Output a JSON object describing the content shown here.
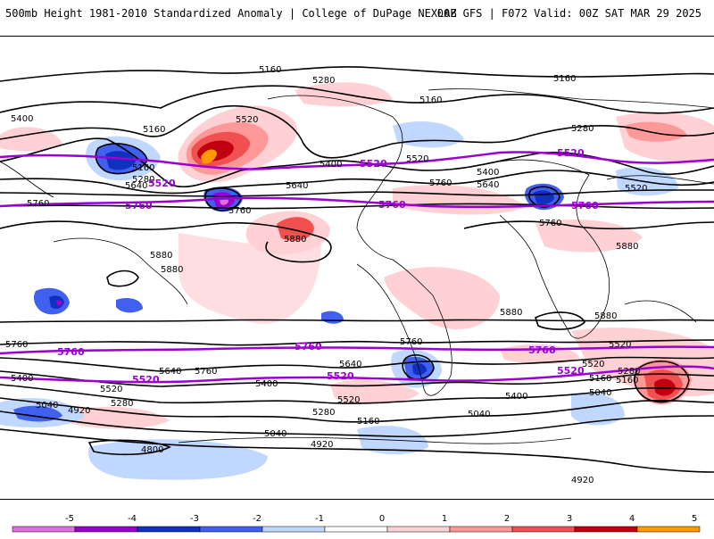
{
  "header": {
    "title": "500mb Height 1981-2010 Standardized Anomaly | College of DuPage NEXLAB",
    "run_info": "00Z GFS | F072 Valid: 00Z SAT MAR 29 2025"
  },
  "colorbar": {
    "ticks": [
      "-5",
      "-4",
      "-3",
      "-2",
      "-1",
      "0",
      "1",
      "2",
      "3",
      "4",
      "5"
    ],
    "colors": [
      "#e070e0",
      "#9b00d0",
      "#1030c0",
      "#4060f0",
      "#c0d8ff",
      "#ffffff",
      "#ffd0d4",
      "#ff9898",
      "#f05050",
      "#c00010",
      "#ff9a00"
    ]
  },
  "contour_labels": [
    {
      "id": "c1",
      "text": "5160"
    },
    {
      "id": "c2",
      "text": "5280"
    },
    {
      "id": "c3",
      "text": "5160"
    },
    {
      "id": "c4",
      "text": "5160"
    },
    {
      "id": "c5",
      "text": "5400"
    },
    {
      "id": "c6",
      "text": "5160"
    },
    {
      "id": "c7",
      "text": "5520"
    },
    {
      "id": "c8",
      "text": "5160"
    },
    {
      "id": "c9",
      "text": "5280"
    },
    {
      "id": "c10",
      "text": "5640"
    },
    {
      "id": "c11",
      "text": "5760"
    },
    {
      "id": "c12",
      "text": "5760"
    },
    {
      "id": "c13",
      "text": "5640"
    },
    {
      "id": "c14",
      "text": "5400"
    },
    {
      "id": "c15",
      "text": "5520"
    },
    {
      "id": "c16",
      "text": "5400"
    },
    {
      "id": "c17",
      "text": "5760"
    },
    {
      "id": "c18",
      "text": "5640"
    },
    {
      "id": "c19",
      "text": "5280"
    },
    {
      "id": "c20",
      "text": "5520"
    },
    {
      "id": "c21",
      "text": "5880"
    },
    {
      "id": "c22",
      "text": "5880"
    },
    {
      "id": "c23",
      "text": "5880"
    },
    {
      "id": "c24",
      "text": "5760"
    },
    {
      "id": "c25",
      "text": "5880"
    },
    {
      "id": "c26",
      "text": "5880"
    },
    {
      "id": "c27",
      "text": "5880"
    },
    {
      "id": "c28",
      "text": "5760"
    },
    {
      "id": "c29",
      "text": "5760"
    },
    {
      "id": "c30",
      "text": "5400"
    },
    {
      "id": "c31",
      "text": "5520"
    },
    {
      "id": "c32",
      "text": "5640"
    },
    {
      "id": "c33",
      "text": "5760"
    },
    {
      "id": "c34",
      "text": "5640"
    },
    {
      "id": "c35",
      "text": "5520"
    },
    {
      "id": "c36",
      "text": "5280"
    },
    {
      "id": "c37",
      "text": "5040"
    },
    {
      "id": "c38",
      "text": "4920"
    },
    {
      "id": "c39",
      "text": "5280"
    },
    {
      "id": "c40",
      "text": "5160"
    },
    {
      "id": "c41",
      "text": "5400"
    },
    {
      "id": "c42",
      "text": "5520"
    },
    {
      "id": "c43",
      "text": "5280"
    },
    {
      "id": "c44",
      "text": "5160"
    },
    {
      "id": "c45",
      "text": "5040"
    },
    {
      "id": "c46",
      "text": "4920"
    },
    {
      "id": "c47",
      "text": "5400"
    },
    {
      "id": "c48",
      "text": "5040"
    },
    {
      "id": "c49",
      "text": "4800"
    },
    {
      "id": "c50",
      "text": "4920"
    },
    {
      "id": "c51",
      "text": "5520"
    },
    {
      "id": "c52",
      "text": "5160"
    },
    {
      "id": "c53",
      "text": "5040"
    }
  ],
  "highlight_labels": [
    {
      "id": "h1",
      "text": "5520"
    },
    {
      "id": "h2",
      "text": "5520"
    },
    {
      "id": "h3",
      "text": "5520"
    },
    {
      "id": "h4",
      "text": "5760"
    },
    {
      "id": "h5",
      "text": "5760"
    },
    {
      "id": "h6",
      "text": "5760"
    },
    {
      "id": "h7",
      "text": "5760"
    },
    {
      "id": "h8",
      "text": "5760"
    },
    {
      "id": "h9",
      "text": "5760"
    },
    {
      "id": "h10",
      "text": "5520"
    },
    {
      "id": "h11",
      "text": "5520"
    },
    {
      "id": "h12",
      "text": "5520"
    }
  ]
}
